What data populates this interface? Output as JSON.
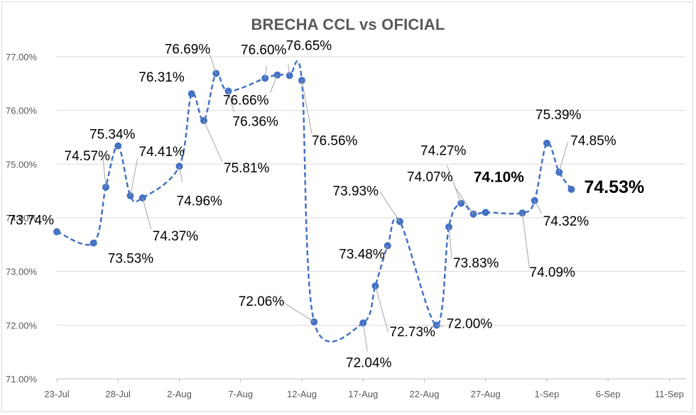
{
  "chart_data": {
    "type": "line",
    "title": "BRECHA CCL vs OFICIAL",
    "xlabel": "",
    "ylabel": "",
    "ylim": [
      71,
      77
    ],
    "yticks": [
      "71.00%",
      "72.00%",
      "73.00%",
      "74.00%",
      "75.00%",
      "76.00%",
      "77.00%"
    ],
    "xticks": [
      "23-Jul",
      "28-Jul",
      "2-Aug",
      "7-Aug",
      "12-Aug",
      "17-Aug",
      "22-Aug",
      "27-Aug",
      "1-Sep",
      "6-Sep",
      "11-Sep"
    ],
    "grid": true,
    "legend": "none",
    "series_color": "#4472c4",
    "points": [
      {
        "x": "23-Jul",
        "y": 73.74,
        "label": "73.74%"
      },
      {
        "x": "26-Jul",
        "y": 73.53,
        "label": "73.53%"
      },
      {
        "x": "27-Jul",
        "y": 74.57,
        "label": "74.57%"
      },
      {
        "x": "28-Jul",
        "y": 75.34,
        "label": "75.34%"
      },
      {
        "x": "29-Jul",
        "y": 74.41,
        "label": "74.41%"
      },
      {
        "x": "30-Jul",
        "y": 74.37,
        "label": "74.37%"
      },
      {
        "x": "2-Aug",
        "y": 74.96,
        "label": "74.96%"
      },
      {
        "x": "3-Aug",
        "y": 76.31,
        "label": "76.31%"
      },
      {
        "x": "4-Aug",
        "y": 75.81,
        "label": "75.81%"
      },
      {
        "x": "5-Aug",
        "y": 76.69,
        "label": "76.69%"
      },
      {
        "x": "6-Aug",
        "y": 76.36,
        "label": "76.36%"
      },
      {
        "x": "9-Aug",
        "y": 76.6,
        "label": "76.60%"
      },
      {
        "x": "10-Aug",
        "y": 76.66,
        "label": "76.66%"
      },
      {
        "x": "11-Aug",
        "y": 76.65,
        "label": "76.65%"
      },
      {
        "x": "12-Aug",
        "y": 76.56,
        "label": "76.56%"
      },
      {
        "x": "13-Aug",
        "y": 72.06,
        "label": "72.06%"
      },
      {
        "x": "17-Aug",
        "y": 72.04,
        "label": "72.04%"
      },
      {
        "x": "18-Aug",
        "y": 72.73,
        "label": "72.73%"
      },
      {
        "x": "19-Aug",
        "y": 73.48,
        "label": "73.48%"
      },
      {
        "x": "20-Aug",
        "y": 73.93,
        "label": "73.93%"
      },
      {
        "x": "23-Aug",
        "y": 72.0,
        "label": "72.00%"
      },
      {
        "x": "24-Aug",
        "y": 73.83,
        "label": "73.83%"
      },
      {
        "x": "25-Aug",
        "y": 74.27,
        "label": "74.27%"
      },
      {
        "x": "26-Aug",
        "y": 74.07,
        "label": "74.07%"
      },
      {
        "x": "27-Aug",
        "y": 74.1,
        "label": "74.10%"
      },
      {
        "x": "30-Aug",
        "y": 74.09,
        "label": "74.09%"
      },
      {
        "x": "31-Aug",
        "y": 74.32,
        "label": "74.32%"
      },
      {
        "x": "1-Sep",
        "y": 75.39,
        "label": "75.39%"
      },
      {
        "x": "2-Sep",
        "y": 74.85,
        "label": "74.85%"
      },
      {
        "x": "3-Sep",
        "y": 74.53,
        "label": "74.53%"
      }
    ]
  }
}
